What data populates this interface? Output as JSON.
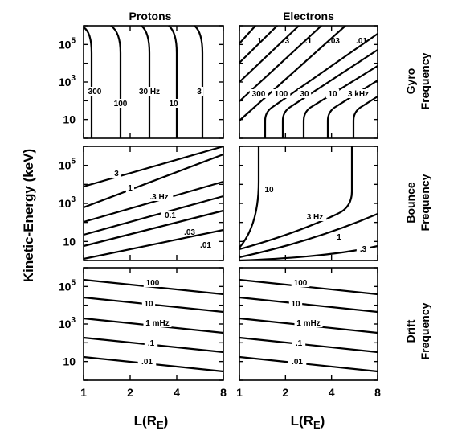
{
  "chart_data": {
    "type": "contour",
    "column_titles": [
      "Protons",
      "Electrons"
    ],
    "row_labels": [
      [
        "Gyro",
        "Frequency"
      ],
      [
        "Bounce",
        "Frequency"
      ],
      [
        "Drift",
        "Frequency"
      ]
    ],
    "ylabel": "Kinetic-Energy (keV)",
    "xlabel_main": "L(R",
    "xlabel_sub": "E",
    "xlabel_close": ")",
    "x_scale": "log",
    "xlim": [
      1,
      8
    ],
    "x_ticks": [
      "1",
      "2",
      "4",
      "8"
    ],
    "y_scale": "log",
    "ylim": [
      1,
      1000000
    ],
    "y_ticks": [
      {
        "base": "10",
        "exp": "5"
      },
      {
        "base": "10",
        "exp": "3"
      },
      {
        "base": "10",
        "exp": ""
      }
    ],
    "panels": [
      {
        "row": "gyro",
        "column": "Protons",
        "contours": [
          {
            "level": "300"
          },
          {
            "level": "100"
          },
          {
            "level": "30 Hz"
          },
          {
            "level": "10"
          },
          {
            "level": "3"
          }
        ]
      },
      {
        "row": "gyro",
        "column": "Electrons",
        "contours": [
          {
            "level": "1"
          },
          {
            "level": ".3"
          },
          {
            "level": ".1"
          },
          {
            "level": ".03"
          },
          {
            "level": ".01"
          },
          {
            "level": "300"
          },
          {
            "level": "100"
          },
          {
            "level": "30"
          },
          {
            "level": "10"
          },
          {
            "level": "3 kHz"
          }
        ]
      },
      {
        "row": "bounce",
        "column": "Protons",
        "contours": [
          {
            "level": "3"
          },
          {
            "level": "1"
          },
          {
            "level": ".3 Hz"
          },
          {
            "level": "0.1"
          },
          {
            "level": ".03"
          },
          {
            "level": ".01"
          }
        ]
      },
      {
        "row": "bounce",
        "column": "Electrons",
        "contours": [
          {
            "level": "10"
          },
          {
            "level": "3 Hz"
          },
          {
            "level": "1"
          },
          {
            "level": ".3"
          }
        ]
      },
      {
        "row": "drift",
        "column": "Protons",
        "contours": [
          {
            "level": "100"
          },
          {
            "level": "10"
          },
          {
            "level": "1 mHz"
          },
          {
            "level": ".1"
          },
          {
            "level": ".01"
          }
        ]
      },
      {
        "row": "drift",
        "column": "Electrons",
        "contours": [
          {
            "level": "100"
          },
          {
            "level": "10"
          },
          {
            "level": "1 mHz"
          },
          {
            "level": ".1"
          },
          {
            "level": ".01"
          }
        ]
      }
    ]
  }
}
